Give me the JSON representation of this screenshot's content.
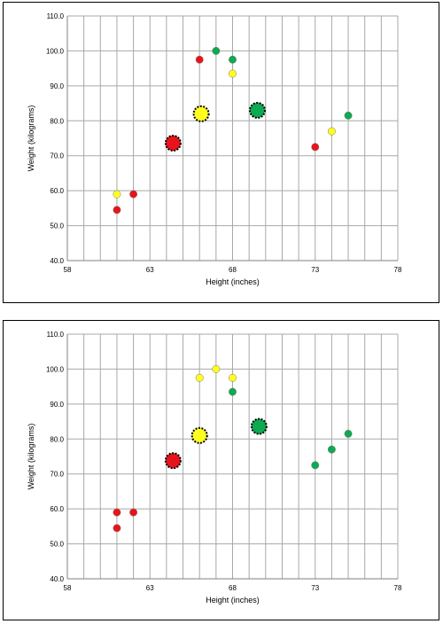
{
  "chart_data": [
    {
      "type": "scatter",
      "xlabel": "Height (inches)",
      "ylabel": "Weight (kilograms)",
      "xlim": [
        58,
        78
      ],
      "ylim": [
        40,
        110
      ],
      "x_ticks": [
        "58",
        "63",
        "68",
        "73",
        "78"
      ],
      "y_ticks": [
        "40.0",
        "50.0",
        "60.0",
        "70.0",
        "80.0",
        "90.0",
        "100.0",
        "110.0"
      ],
      "grid": true,
      "colors": {
        "red": "#e8141b",
        "yellow": "#ffff1f",
        "green": "#0daa52"
      },
      "points": [
        {
          "x": 61,
          "y": 54.5,
          "color": "red"
        },
        {
          "x": 62,
          "y": 59,
          "color": "red"
        },
        {
          "x": 66,
          "y": 97.5,
          "color": "red"
        },
        {
          "x": 73,
          "y": 72.5,
          "color": "red"
        },
        {
          "x": 61,
          "y": 59,
          "color": "yellow"
        },
        {
          "x": 68,
          "y": 93.5,
          "color": "yellow"
        },
        {
          "x": 74,
          "y": 77,
          "color": "yellow"
        },
        {
          "x": 67,
          "y": 100,
          "color": "green"
        },
        {
          "x": 68,
          "y": 97.5,
          "color": "green"
        },
        {
          "x": 75,
          "y": 81.5,
          "color": "green"
        }
      ],
      "centroids": [
        {
          "x": 64.4,
          "y": 73.6,
          "color": "red"
        },
        {
          "x": 66.1,
          "y": 82,
          "color": "yellow"
        },
        {
          "x": 69.5,
          "y": 83,
          "color": "green"
        }
      ]
    },
    {
      "type": "scatter",
      "xlabel": "Height (inches)",
      "ylabel": "Weight (kilograms)",
      "xlim": [
        58,
        78
      ],
      "ylim": [
        40,
        110
      ],
      "x_ticks": [
        "58",
        "63",
        "68",
        "73",
        "78"
      ],
      "y_ticks": [
        "40.0",
        "50.0",
        "60.0",
        "70.0",
        "80.0",
        "90.0",
        "100.0",
        "110.0"
      ],
      "grid": true,
      "colors": {
        "red": "#e8141b",
        "yellow": "#ffff1f",
        "green": "#0daa52"
      },
      "points": [
        {
          "x": 61,
          "y": 54.5,
          "color": "red"
        },
        {
          "x": 61,
          "y": 59,
          "color": "red"
        },
        {
          "x": 62,
          "y": 59,
          "color": "red"
        },
        {
          "x": 66,
          "y": 97.5,
          "color": "yellow"
        },
        {
          "x": 67,
          "y": 100,
          "color": "yellow"
        },
        {
          "x": 68,
          "y": 97.5,
          "color": "yellow"
        },
        {
          "x": 68,
          "y": 93.5,
          "color": "green"
        },
        {
          "x": 73,
          "y": 72.5,
          "color": "green"
        },
        {
          "x": 74,
          "y": 77,
          "color": "green"
        },
        {
          "x": 75,
          "y": 81.5,
          "color": "green"
        }
      ],
      "centroids": [
        {
          "x": 64.4,
          "y": 73.8,
          "color": "red"
        },
        {
          "x": 66,
          "y": 81,
          "color": "yellow"
        },
        {
          "x": 69.6,
          "y": 83.6,
          "color": "green"
        }
      ]
    }
  ]
}
